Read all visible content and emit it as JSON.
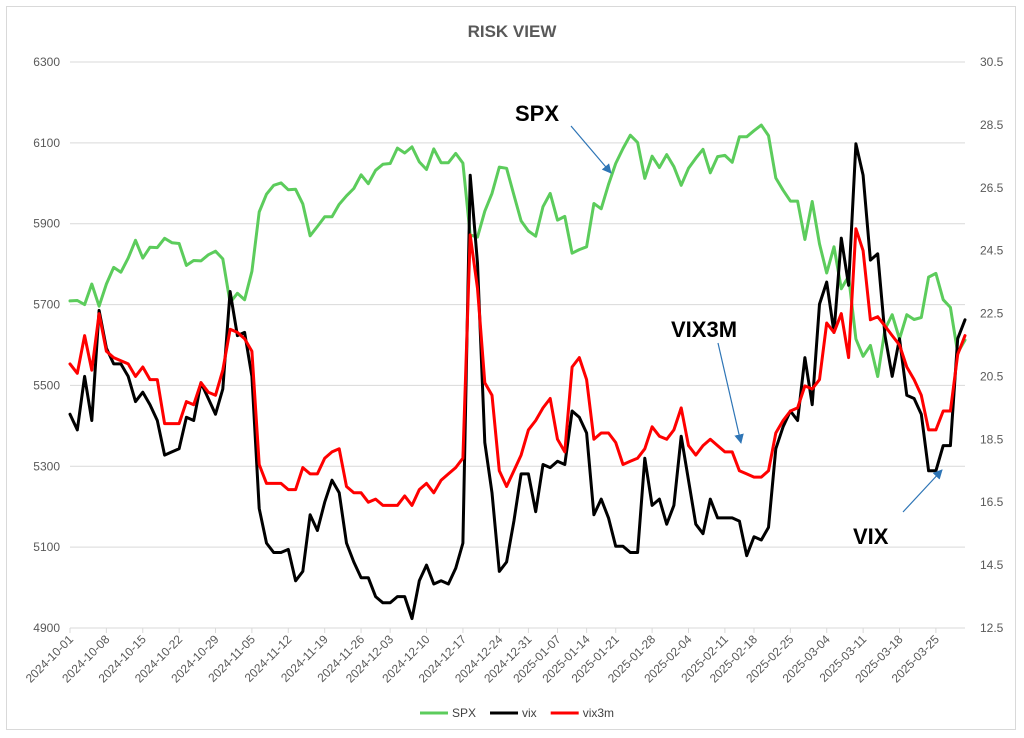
{
  "chart_data": {
    "type": "line",
    "title": "RISK VIEW",
    "x_dates": [
      "2024-10-01",
      "2024-10-02",
      "2024-10-03",
      "2024-10-04",
      "2024-10-07",
      "2024-10-08",
      "2024-10-09",
      "2024-10-10",
      "2024-10-11",
      "2024-10-14",
      "2024-10-15",
      "2024-10-16",
      "2024-10-17",
      "2024-10-18",
      "2024-10-21",
      "2024-10-22",
      "2024-10-23",
      "2024-10-24",
      "2024-10-25",
      "2024-10-28",
      "2024-10-29",
      "2024-10-30",
      "2024-10-31",
      "2024-11-01",
      "2024-11-04",
      "2024-11-05",
      "2024-11-06",
      "2024-11-07",
      "2024-11-08",
      "2024-11-11",
      "2024-11-12",
      "2024-11-13",
      "2024-11-14",
      "2024-11-15",
      "2024-11-18",
      "2024-11-19",
      "2024-11-20",
      "2024-11-21",
      "2024-11-22",
      "2024-11-25",
      "2024-11-26",
      "2024-11-27",
      "2024-11-29",
      "2024-12-02",
      "2024-12-03",
      "2024-12-04",
      "2024-12-05",
      "2024-12-06",
      "2024-12-09",
      "2024-12-10",
      "2024-12-11",
      "2024-12-12",
      "2024-12-13",
      "2024-12-16",
      "2024-12-17",
      "2024-12-18",
      "2024-12-19",
      "2024-12-20",
      "2024-12-23",
      "2024-12-24",
      "2024-12-26",
      "2024-12-27",
      "2024-12-30",
      "2024-12-31",
      "2025-01-02",
      "2025-01-03",
      "2025-01-06",
      "2025-01-07",
      "2025-01-08",
      "2025-01-10",
      "2025-01-13",
      "2025-01-14",
      "2025-01-15",
      "2025-01-16",
      "2025-01-17",
      "2025-01-21",
      "2025-01-22",
      "2025-01-23",
      "2025-01-24",
      "2025-01-27",
      "2025-01-28",
      "2025-01-29",
      "2025-01-30",
      "2025-01-31",
      "2025-02-03",
      "2025-02-04",
      "2025-02-05",
      "2025-02-06",
      "2025-02-07",
      "2025-02-10",
      "2025-02-11",
      "2025-02-12",
      "2025-02-13",
      "2025-02-14",
      "2025-02-18",
      "2025-02-19",
      "2025-02-20",
      "2025-02-21",
      "2025-02-24",
      "2025-02-25",
      "2025-02-26",
      "2025-02-27",
      "2025-02-28",
      "2025-03-03",
      "2025-03-04",
      "2025-03-05",
      "2025-03-06",
      "2025-03-07",
      "2025-03-10",
      "2025-03-11",
      "2025-03-12",
      "2025-03-13",
      "2025-03-14",
      "2025-03-17",
      "2025-03-18",
      "2025-03-19",
      "2025-03-20",
      "2025-03-21",
      "2025-03-24",
      "2025-03-25",
      "2025-03-26",
      "2025-03-27",
      "2025-03-28",
      "2025-03-31"
    ],
    "x_tick_labels": [
      "2024-10-01",
      "2024-10-08",
      "2024-10-15",
      "2024-10-22",
      "2024-10-29",
      "2024-11-05",
      "2024-11-12",
      "2024-11-19",
      "2024-11-26",
      "2024-12-03",
      "2024-12-10",
      "2024-12-17",
      "2024-12-24",
      "2024-12-31",
      "2025-01-07",
      "2025-01-14",
      "2025-01-21",
      "2025-01-28",
      "2025-02-04",
      "2025-02-11",
      "2025-02-18",
      "2025-02-25",
      "2025-03-04",
      "2025-03-11",
      "2025-03-18",
      "2025-03-25"
    ],
    "y_left": {
      "min": 4900,
      "max": 6300,
      "ticks": [
        4900,
        5100,
        5300,
        5500,
        5700,
        5900,
        6100,
        6300
      ]
    },
    "y_right": {
      "min": 12.5,
      "max": 30.5,
      "ticks": [
        12.5,
        14.5,
        16.5,
        18.5,
        20.5,
        22.5,
        24.5,
        26.5,
        28.5,
        30.5
      ]
    },
    "grid": true,
    "legend_position": "bottom",
    "series": [
      {
        "name": "SPX",
        "axis": "left",
        "color": "#5ccc5c",
        "values": [
          5709,
          5710,
          5700,
          5751,
          5696,
          5751,
          5792,
          5780,
          5815,
          5859,
          5815,
          5842,
          5841,
          5864,
          5853,
          5851,
          5797,
          5809,
          5808,
          5823,
          5832,
          5813,
          5705,
          5728,
          5712,
          5782,
          5929,
          5973,
          5995,
          6001,
          5984,
          5985,
          5949,
          5870,
          5893,
          5917,
          5917,
          5948,
          5969,
          5987,
          6021,
          5999,
          6032,
          6047,
          6049,
          6087,
          6075,
          6090,
          6053,
          6034,
          6085,
          6051,
          6051,
          6074,
          6050,
          5872,
          5867,
          5931,
          5975,
          6040,
          6037,
          5971,
          5907,
          5882,
          5869,
          5942,
          5975,
          5909,
          5918,
          5827,
          5836,
          5843,
          5950,
          5937,
          5997,
          6049,
          6086,
          6119,
          6101,
          6012,
          6067,
          6039,
          6071,
          6041,
          5995,
          6037,
          6062,
          6084,
          6026,
          6066,
          6069,
          6052,
          6115,
          6115,
          6130,
          6144,
          6118,
          6013,
          5983,
          5956,
          5956,
          5861,
          5955,
          5850,
          5778,
          5843,
          5739,
          5770,
          5615,
          5572,
          5599,
          5522,
          5639,
          5675,
          5615,
          5675,
          5663,
          5668,
          5768,
          5777,
          5712,
          5693,
          5581,
          5612
        ]
      },
      {
        "name": "vix",
        "axis": "right",
        "color": "#000000",
        "values": [
          19.3,
          18.8,
          20.5,
          19.1,
          22.6,
          21.4,
          20.9,
          20.9,
          20.5,
          19.7,
          20.0,
          19.6,
          19.1,
          18.0,
          18.1,
          18.2,
          19.2,
          19.1,
          20.3,
          19.8,
          19.3,
          20.1,
          23.2,
          21.8,
          21.9,
          20.5,
          16.3,
          15.2,
          14.9,
          14.9,
          15.0,
          14.0,
          14.3,
          16.1,
          15.6,
          16.5,
          17.2,
          16.8,
          15.2,
          14.6,
          14.1,
          14.1,
          13.5,
          13.3,
          13.3,
          13.5,
          13.5,
          12.8,
          14.0,
          14.5,
          13.9,
          14.0,
          13.9,
          14.4,
          15.2,
          26.9,
          24.1,
          18.4,
          16.8,
          14.3,
          14.6,
          15.9,
          17.4,
          17.4,
          16.2,
          17.7,
          17.6,
          17.8,
          17.7,
          19.4,
          19.2,
          18.7,
          16.1,
          16.6,
          16.0,
          15.1,
          15.1,
          14.9,
          14.9,
          17.9,
          16.4,
          16.6,
          15.8,
          16.4,
          18.6,
          17.2,
          15.8,
          15.5,
          16.6,
          16.0,
          16.0,
          16.0,
          15.9,
          14.8,
          15.4,
          15.3,
          15.7,
          18.2,
          18.9,
          19.4,
          19.1,
          21.1,
          19.6,
          22.8,
          23.5,
          21.9,
          24.9,
          23.4,
          27.9,
          26.9,
          24.2,
          24.4,
          21.8,
          20.5,
          21.7,
          19.9,
          19.8,
          19.3,
          17.5,
          17.5,
          18.3,
          18.3,
          21.7,
          22.3
        ]
      },
      {
        "name": "vix3m",
        "axis": "right",
        "color": "#ff0000",
        "values": [
          20.9,
          20.6,
          21.8,
          20.7,
          22.5,
          21.3,
          21.1,
          21.0,
          20.9,
          20.5,
          20.8,
          20.4,
          20.4,
          19.0,
          19.0,
          19.0,
          19.7,
          19.6,
          20.3,
          20.0,
          19.9,
          20.7,
          22.0,
          21.9,
          21.7,
          21.3,
          17.7,
          17.1,
          17.1,
          17.1,
          16.9,
          16.9,
          17.6,
          17.4,
          17.4,
          17.9,
          18.1,
          18.2,
          17.0,
          16.8,
          16.8,
          16.5,
          16.6,
          16.4,
          16.4,
          16.4,
          16.7,
          16.4,
          16.9,
          17.1,
          16.8,
          17.2,
          17.4,
          17.6,
          17.9,
          25.0,
          23.3,
          20.3,
          19.9,
          17.5,
          17.0,
          17.5,
          18.0,
          18.8,
          19.1,
          19.5,
          19.8,
          18.5,
          18.1,
          20.8,
          21.1,
          20.4,
          18.5,
          18.7,
          18.7,
          18.4,
          17.7,
          17.8,
          17.9,
          18.2,
          18.9,
          18.6,
          18.5,
          18.8,
          19.5,
          18.3,
          18.0,
          18.3,
          18.5,
          18.3,
          18.1,
          18.1,
          17.5,
          17.4,
          17.3,
          17.3,
          17.5,
          18.7,
          19.1,
          19.4,
          19.5,
          20.2,
          20.1,
          20.4,
          22.2,
          21.9,
          22.5,
          21.1,
          25.2,
          24.5,
          22.3,
          22.4,
          22.1,
          21.8,
          21.5,
          20.8,
          20.4,
          19.9,
          18.8,
          18.8,
          19.4,
          19.4,
          21.2,
          21.8
        ]
      }
    ],
    "annotations": [
      {
        "text": "SPX",
        "points_to": "SPX"
      },
      {
        "text": "VIX3M",
        "points_to": "vix3m"
      },
      {
        "text": "VIX",
        "points_to": "vix"
      }
    ]
  }
}
